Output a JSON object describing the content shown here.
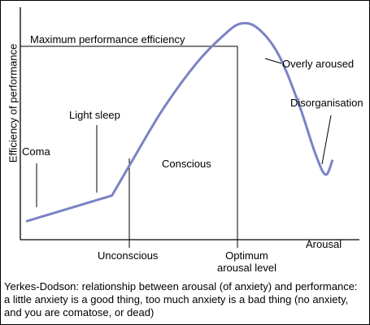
{
  "colors": {
    "curve": "#7b83c4",
    "axis": "#000000",
    "background": "#ffffff"
  },
  "chart_data": {
    "type": "line",
    "title": "",
    "xlabel": "Arousal",
    "ylabel": "Efficiency of performance",
    "ticks": "none",
    "series": [
      {
        "points": [
          {
            "x": 0.02,
            "y": 0.08
          },
          {
            "x": 0.27,
            "y": 0.19
          },
          {
            "x": 0.33,
            "y": 0.34
          },
          {
            "x": 0.42,
            "y": 0.56
          },
          {
            "x": 0.52,
            "y": 0.76
          },
          {
            "x": 0.6,
            "y": 0.88
          },
          {
            "x": 0.65,
            "y": 0.93
          },
          {
            "x": 0.7,
            "y": 0.91
          },
          {
            "x": 0.76,
            "y": 0.8
          },
          {
            "x": 0.82,
            "y": 0.59
          },
          {
            "x": 0.87,
            "y": 0.37
          },
          {
            "x": 0.9,
            "y": 0.28
          },
          {
            "x": 0.92,
            "y": 0.34
          }
        ]
      }
    ],
    "reference_line": {
      "label": "Maximum performance efficiency",
      "y": 0.93
    },
    "annotations": [
      {
        "text": "Coma",
        "x": 0.02,
        "y": 0.08
      },
      {
        "text": "Light sleep",
        "x": 0.24,
        "y": 0.18
      },
      {
        "text": "Unconscious",
        "x": 0.34,
        "y": 0.3
      },
      {
        "text": "Conscious",
        "x": 0.52,
        "y": 0.45
      },
      {
        "text": "Optimum arousal level",
        "x": 0.65,
        "y": 0.93
      },
      {
        "text": "Overly aroused",
        "x": 0.74,
        "y": 0.84
      },
      {
        "text": "Disorganisation",
        "x": 0.91,
        "y": 0.31
      }
    ]
  },
  "labels": {
    "ylabel": "Efficiency of performance",
    "xlabel": "Arousal",
    "max_perf": "Maximum performance efficiency",
    "coma": "Coma",
    "light_sleep": "Light sleep",
    "unconscious": "Unconscious",
    "conscious": "Conscious",
    "optimum_line1": "Optimum",
    "optimum_line2": "arousal level",
    "overly_aroused": "Overly aroused",
    "disorganisation": "Disorganisation"
  },
  "caption": "Yerkes-Dodson: relationship between arousal (of anxiety) and performance: a little anxiety is a good thing, too much anxiety is a bad thing (no anxiety, and you are comatose, or dead)"
}
